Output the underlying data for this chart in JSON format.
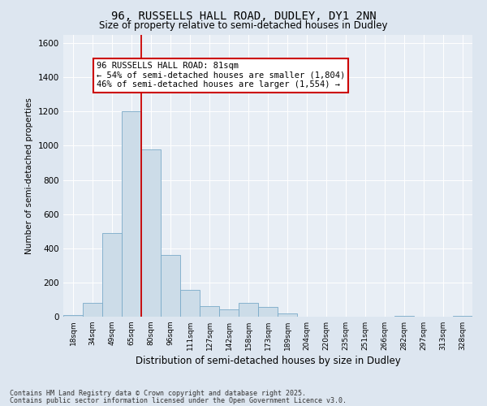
{
  "title_line1": "96, RUSSELLS HALL ROAD, DUDLEY, DY1 2NN",
  "title_line2": "Size of property relative to semi-detached houses in Dudley",
  "xlabel": "Distribution of semi-detached houses by size in Dudley",
  "ylabel": "Number of semi-detached properties",
  "bins": [
    "18sqm",
    "34sqm",
    "49sqm",
    "65sqm",
    "80sqm",
    "96sqm",
    "111sqm",
    "127sqm",
    "142sqm",
    "158sqm",
    "173sqm",
    "189sqm",
    "204sqm",
    "220sqm",
    "235sqm",
    "251sqm",
    "266sqm",
    "282sqm",
    "297sqm",
    "313sqm",
    "328sqm"
  ],
  "bar_values": [
    10,
    80,
    490,
    1200,
    980,
    360,
    155,
    60,
    45,
    80,
    55,
    20,
    0,
    0,
    0,
    0,
    0,
    5,
    0,
    0,
    5
  ],
  "bar_color": "#ccdce8",
  "bar_edge_color": "#7aaac8",
  "vline_x_bin": 4,
  "vline_color": "#cc0000",
  "annotation_text": "96 RUSSELLS HALL ROAD: 81sqm\n← 54% of semi-detached houses are smaller (1,804)\n46% of semi-detached houses are larger (1,554) →",
  "annotation_box_color": "#ffffff",
  "annotation_box_edge_color": "#cc0000",
  "ylim": [
    0,
    1650
  ],
  "yticks": [
    0,
    200,
    400,
    600,
    800,
    1000,
    1200,
    1400,
    1600
  ],
  "footer_line1": "Contains HM Land Registry data © Crown copyright and database right 2025.",
  "footer_line2": "Contains public sector information licensed under the Open Government Licence v3.0.",
  "background_color": "#dde6f0",
  "plot_background_color": "#e8eef5"
}
